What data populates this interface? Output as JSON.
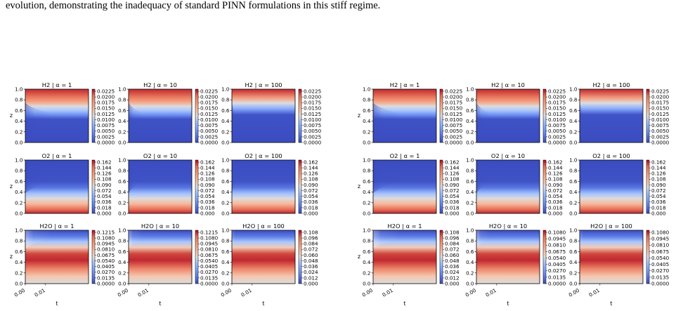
{
  "caption_text": "evolution, demonstrating the inadequacy of standard PINN formulations in this stiff regime.",
  "figures": [
    {
      "rows": [
        {
          "titles": [
            "H2  |  α = 1",
            "H2  |  α = 10",
            "H2  |  α = 100"
          ],
          "colorbars": [
            [
              "0.0225",
              "0.0200",
              "0.0175",
              "0.0150",
              "0.0125",
              "0.0100",
              "0.0075",
              "0.0050",
              "0.0025",
              "0.0000"
            ],
            [
              "0.0225",
              "0.0200",
              "0.0175",
              "0.0150",
              "0.0125",
              "0.0100",
              "0.0075",
              "0.0050",
              "0.0025",
              "0.0000"
            ],
            [
              "0.0225",
              "0.0200",
              "0.0175",
              "0.0150",
              "0.0125",
              "0.0100",
              "0.0075",
              "0.0050",
              "0.0025",
              "0.0000"
            ]
          ]
        },
        {
          "titles": [
            "O2  |  α = 1",
            "O2  |  α = 10",
            "O2  |  α = 100"
          ],
          "colorbars": [
            [
              "0.162",
              "0.144",
              "0.126",
              "0.108",
              "0.090",
              "0.072",
              "0.054",
              "0.036",
              "0.018",
              "0.000"
            ],
            [
              "0.162",
              "0.144",
              "0.126",
              "0.108",
              "0.090",
              "0.072",
              "0.054",
              "0.036",
              "0.018",
              "0.000"
            ],
            [
              "0.162",
              "0.144",
              "0.126",
              "0.108",
              "0.090",
              "0.072",
              "0.054",
              "0.036",
              "0.018",
              "0.000"
            ]
          ]
        },
        {
          "titles": [
            "H2O  |  α = 1",
            "H2O  |  α = 10",
            "H2O  |  α = 100"
          ],
          "colorbars": [
            [
              "0.1215",
              "0.1080",
              "0.0945",
              "0.0810",
              "0.0675",
              "0.0540",
              "0.0405",
              "0.0270",
              "0.0135",
              "0.0000"
            ],
            [
              "0.1215",
              "0.1080",
              "0.0945",
              "0.0810",
              "0.0675",
              "0.0540",
              "0.0405",
              "0.0270",
              "0.0135",
              "0.0000"
            ],
            [
              "0.108",
              "0.096",
              "0.084",
              "0.072",
              "0.060",
              "0.048",
              "0.036",
              "0.024",
              "0.012",
              "0.000"
            ]
          ]
        }
      ]
    },
    {
      "rows": [
        {
          "titles": [
            "H2  |  α = 1",
            "H2  |  α = 10",
            "H2  |  α = 100"
          ],
          "colorbars": [
            [
              "0.0225",
              "0.0200",
              "0.0175",
              "0.0150",
              "0.0125",
              "0.0100",
              "0.0075",
              "0.0050",
              "0.0025",
              "0.0000"
            ],
            [
              "0.0225",
              "0.0200",
              "0.0175",
              "0.0150",
              "0.0125",
              "0.0100",
              "0.0075",
              "0.0050",
              "0.0025",
              "0.0000"
            ],
            [
              "0.0225",
              "0.0200",
              "0.0175",
              "0.0150",
              "0.0125",
              "0.0100",
              "0.0075",
              "0.0050",
              "0.0025",
              "0.0000"
            ]
          ]
        },
        {
          "titles": [
            "O2  |  α = 1",
            "O2  |  α = 10",
            "O2  |  α = 100"
          ],
          "colorbars": [
            [
              "0.162",
              "0.144",
              "0.126",
              "0.108",
              "0.090",
              "0.072",
              "0.054",
              "0.036",
              "0.018",
              "0.000"
            ],
            [
              "0.162",
              "0.144",
              "0.126",
              "0.108",
              "0.090",
              "0.072",
              "0.054",
              "0.036",
              "0.018",
              "0.000"
            ],
            [
              "0.162",
              "0.144",
              "0.126",
              "0.108",
              "0.090",
              "0.072",
              "0.054",
              "0.036",
              "0.018",
              "0.000"
            ]
          ]
        },
        {
          "titles": [
            "H2O  |  α = 1",
            "H2O  |  α = 10",
            "H2O  |  α = 100"
          ],
          "colorbars": [
            [
              "0.108",
              "0.096",
              "0.084",
              "0.072",
              "0.060",
              "0.048",
              "0.036",
              "0.024",
              "0.012",
              "0.000"
            ],
            [
              "0.1080",
              "0.0945",
              "0.0810",
              "0.0675",
              "0.0540",
              "0.0405",
              "0.0270",
              "0.0135",
              "0.0000"
            ],
            [
              "0.1080",
              "0.0945",
              "0.0810",
              "0.0675",
              "0.0540",
              "0.0405",
              "0.0270",
              "0.0135",
              "0.0000"
            ]
          ]
        }
      ]
    }
  ],
  "y_ticks": [
    "1.0",
    "0.8",
    "0.6",
    "0.4",
    "0.2",
    "0.0"
  ],
  "x_ticks": [
    "0.00",
    "0.01"
  ],
  "y_label": "z",
  "x_label": "t",
  "colormap": "coolwarm",
  "colormap_low": "#3b4cc0",
  "colormap_high": "#b40426"
}
